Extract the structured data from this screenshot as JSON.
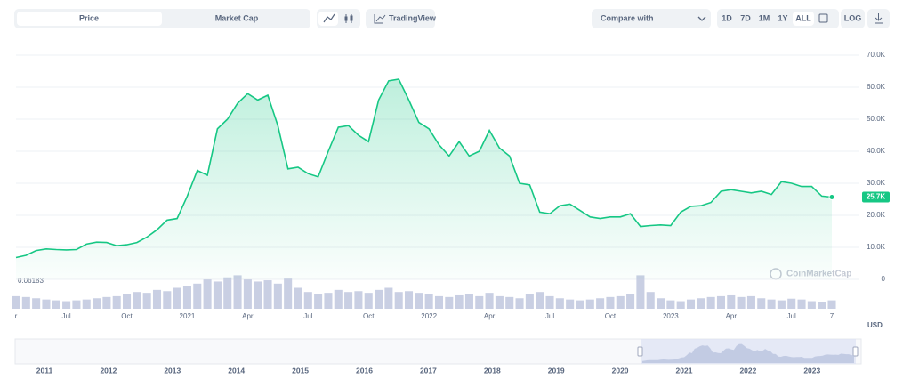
{
  "toolbar": {
    "tabs": [
      "Price",
      "Market Cap"
    ],
    "tradingview": "TradingView",
    "compare": "Compare with",
    "ranges": [
      "1D",
      "7D",
      "1M",
      "1Y",
      "ALL"
    ],
    "log": "LOG"
  },
  "chart_data": {
    "type": "line",
    "categories": [
      "r",
      null,
      null,
      null,
      null,
      "Jul",
      null,
      null,
      null,
      null,
      null,
      "Oct",
      null,
      null,
      null,
      null,
      null,
      "2021",
      null,
      null,
      null,
      null,
      null,
      "Apr",
      null,
      null,
      null,
      null,
      null,
      "Jul",
      null,
      null,
      null,
      null,
      null,
      "Oct",
      null,
      null,
      null,
      null,
      null,
      "2022",
      null,
      null,
      null,
      null,
      null,
      "Apr",
      null,
      null,
      null,
      null,
      null,
      "Jul",
      null,
      null,
      null,
      null,
      null,
      "Oct",
      null,
      null,
      null,
      null,
      null,
      "2023",
      null,
      null,
      null,
      null,
      null,
      "Apr",
      null,
      null,
      null,
      null,
      null,
      "Jul",
      null,
      null,
      null,
      "7"
    ],
    "series": [
      {
        "color": "#16c784",
        "values": [
          6800,
          7500,
          9000,
          9500,
          9300,
          9200,
          9300,
          11000,
          11600,
          11500,
          10500,
          10800,
          11500,
          13200,
          15500,
          18500,
          19000,
          26000,
          34000,
          32500,
          47000,
          50000,
          55000,
          58000,
          56000,
          57500,
          48000,
          34500,
          35000,
          33000,
          32000,
          40000,
          47500,
          48000,
          45000,
          43000,
          56000,
          62000,
          62500,
          56000,
          49000,
          47000,
          42000,
          38500,
          43000,
          38500,
          40000,
          46500,
          41000,
          38500,
          30000,
          29500,
          21000,
          20500,
          23000,
          23500,
          21500,
          19500,
          19000,
          19500,
          19500,
          20500,
          16500,
          16800,
          17000,
          16800,
          21000,
          22800,
          23000,
          24000,
          27500,
          28000,
          27500,
          27000,
          27500,
          26500,
          30500,
          30000,
          29000,
          29000,
          26000,
          25700
        ],
        "value_labels": [
          null,
          null,
          null,
          null,
          null,
          null,
          null,
          null,
          null,
          null,
          null,
          null,
          null,
          null,
          null,
          null,
          null,
          null,
          null,
          null,
          null,
          null,
          null,
          null,
          null,
          null,
          null,
          null,
          null,
          null,
          null,
          null,
          null,
          null,
          null,
          null,
          null,
          null,
          null,
          null,
          null,
          null,
          null,
          null,
          null,
          null,
          null,
          null,
          null,
          null,
          null,
          null,
          null,
          null,
          null,
          null,
          null,
          null,
          null,
          null,
          null,
          null,
          null,
          null,
          null,
          null,
          null,
          null,
          null,
          null,
          null,
          null,
          null,
          null,
          null,
          null,
          null,
          null,
          null,
          null,
          null,
          "25.7K"
        ]
      }
    ],
    "volumes": [
      30,
      28,
      25,
      22,
      20,
      18,
      20,
      22,
      25,
      28,
      30,
      35,
      40,
      38,
      45,
      42,
      50,
      55,
      60,
      70,
      65,
      75,
      80,
      70,
      65,
      68,
      60,
      72,
      50,
      40,
      35,
      38,
      45,
      40,
      42,
      38,
      45,
      50,
      40,
      42,
      38,
      35,
      30,
      28,
      32,
      35,
      30,
      38,
      30,
      28,
      25,
      35,
      40,
      30,
      25,
      22,
      20,
      22,
      25,
      28,
      30,
      35,
      80,
      40,
      25,
      20,
      18,
      22,
      25,
      28,
      30,
      32,
      28,
      30,
      25,
      22,
      20,
      24,
      22,
      18,
      16,
      20
    ],
    "volume_color": "#c9cfe3",
    "y2lim": [
      0,
      100
    ],
    "ylim": [
      0,
      70000
    ],
    "yticks": [
      0,
      {
        "value": 10000,
        "label": "10.0K"
      },
      {
        "value": 20000,
        "label": "20.0K"
      },
      {
        "value": 30000,
        "label": "30.0K"
      },
      {
        "value": 40000,
        "label": "40.0K"
      },
      {
        "value": 50000,
        "label": "50.0K"
      },
      {
        "value": 60000,
        "label": "60.0K"
      },
      {
        "value": 70000,
        "label": "70.0K"
      }
    ],
    "grid": true,
    "min_label": "0.06183",
    "currency": "USD",
    "watermark": "CoinMarketCap"
  },
  "navigator": {
    "years": [
      "2011",
      "2012",
      "2013",
      "2014",
      "2015",
      "2016",
      "2017",
      "2018",
      "2019",
      "2020",
      "2021",
      "2022",
      "2023"
    ]
  }
}
